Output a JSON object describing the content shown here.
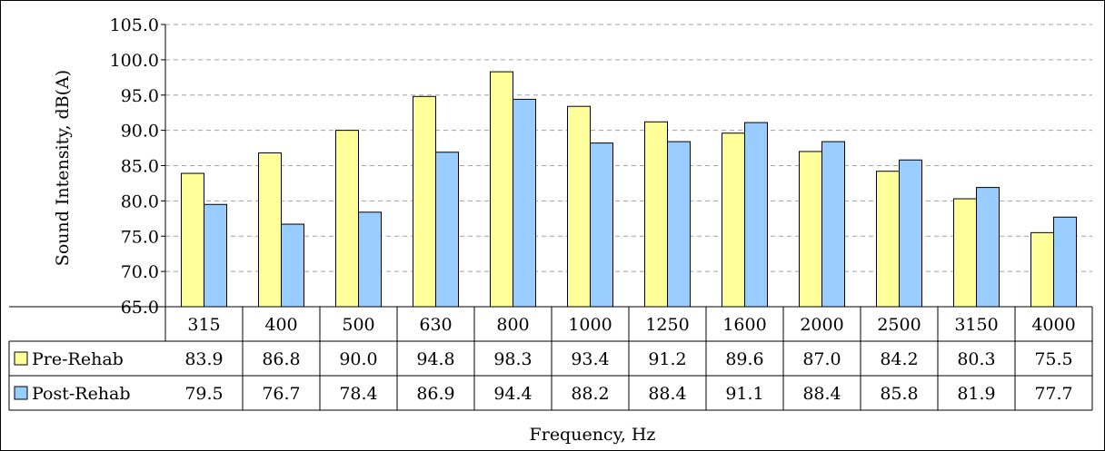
{
  "chart_data": {
    "type": "bar",
    "categories": [
      "315",
      "400",
      "500",
      "630",
      "800",
      "1000",
      "1250",
      "1600",
      "2000",
      "2500",
      "3150",
      "4000"
    ],
    "series": [
      {
        "name": "Pre-Rehab",
        "values": [
          83.9,
          86.8,
          90.0,
          94.8,
          98.3,
          93.4,
          91.2,
          89.6,
          87.0,
          84.2,
          80.3,
          75.5
        ],
        "color": "#ffff99"
      },
      {
        "name": "Post-Rehab",
        "values": [
          79.5,
          76.7,
          78.4,
          86.9,
          94.4,
          88.2,
          88.4,
          91.1,
          88.4,
          85.8,
          81.9,
          77.7
        ],
        "color": "#99ccff"
      }
    ],
    "table_values": [
      [
        "83.9",
        "86.8",
        "90.0",
        "94.8",
        "98.3",
        "93.4",
        "91.2",
        "89.6",
        "87.0",
        "84.2",
        "80.3",
        "75.5"
      ],
      [
        "79.5",
        "76.7",
        "78.4",
        "86.9",
        "94.4",
        "88.2",
        "88.4",
        "91.1",
        "88.4",
        "85.8",
        "81.9",
        "77.7"
      ]
    ],
    "xlabel": "Frequency, Hz",
    "ylabel": "Sound Intensity, dB(A)",
    "ylim": [
      65.0,
      105.0
    ],
    "yticks": [
      "65.0",
      "70.0",
      "75.0",
      "80.0",
      "85.0",
      "90.0",
      "95.0",
      "100.0",
      "105.0"
    ],
    "grid": true,
    "legend": "data-table"
  }
}
